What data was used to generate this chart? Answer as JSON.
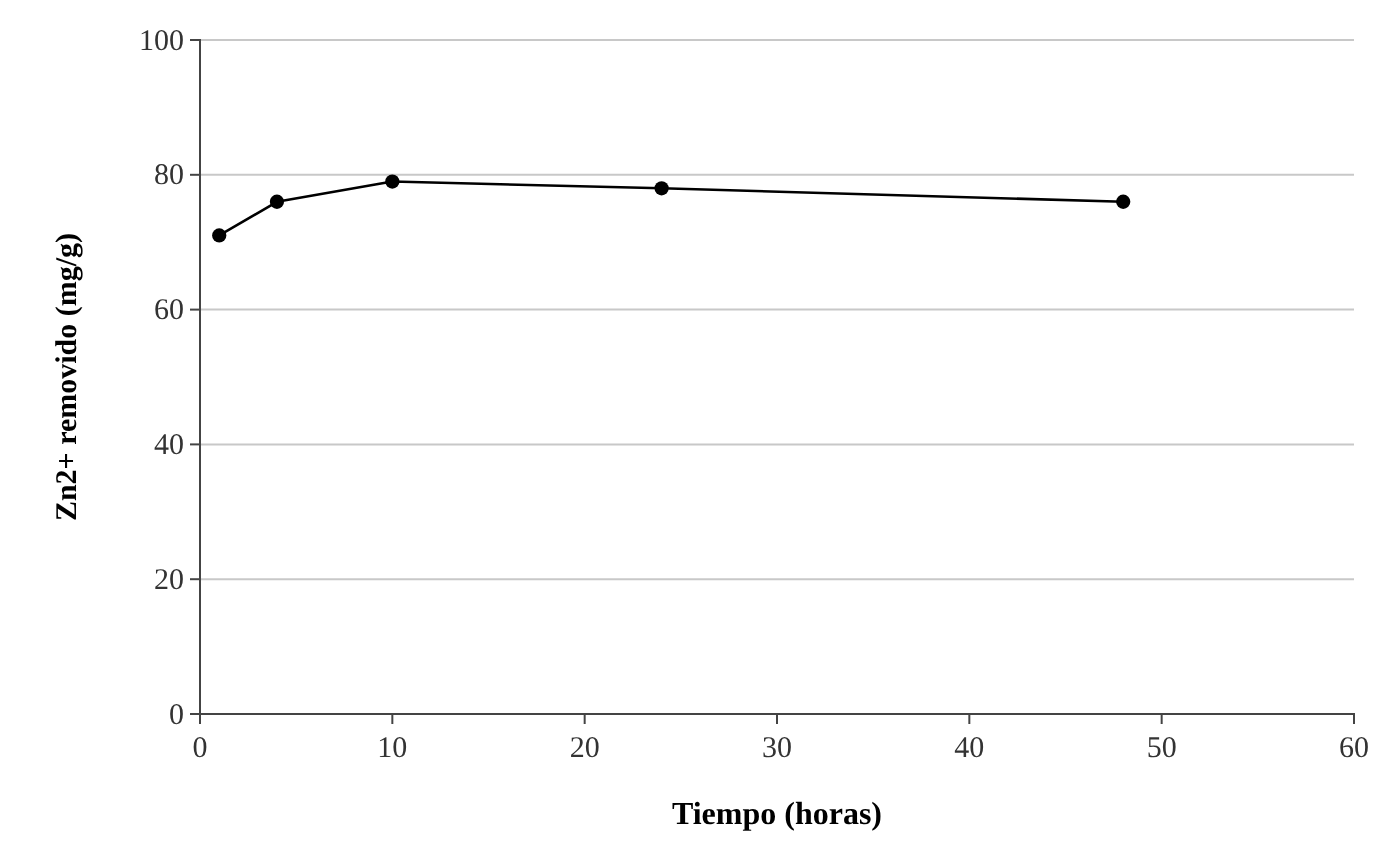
{
  "chart_data": {
    "type": "line",
    "xlabel": "Tiempo (horas)",
    "ylabel": "Zn2+ removido (mg/g)",
    "x": [
      1,
      4,
      10,
      24,
      48
    ],
    "series": [
      {
        "color": "#000000",
        "values": [
          71,
          76,
          79,
          78,
          76
        ]
      }
    ],
    "xlim": [
      0,
      60
    ],
    "xticks": [
      0,
      10,
      20,
      30,
      40,
      50,
      60
    ],
    "ylim": [
      0,
      100
    ],
    "yticks": [
      0,
      20,
      40,
      60,
      80,
      100
    ],
    "grid": "y",
    "marker": "circle",
    "line_style": "solid"
  }
}
